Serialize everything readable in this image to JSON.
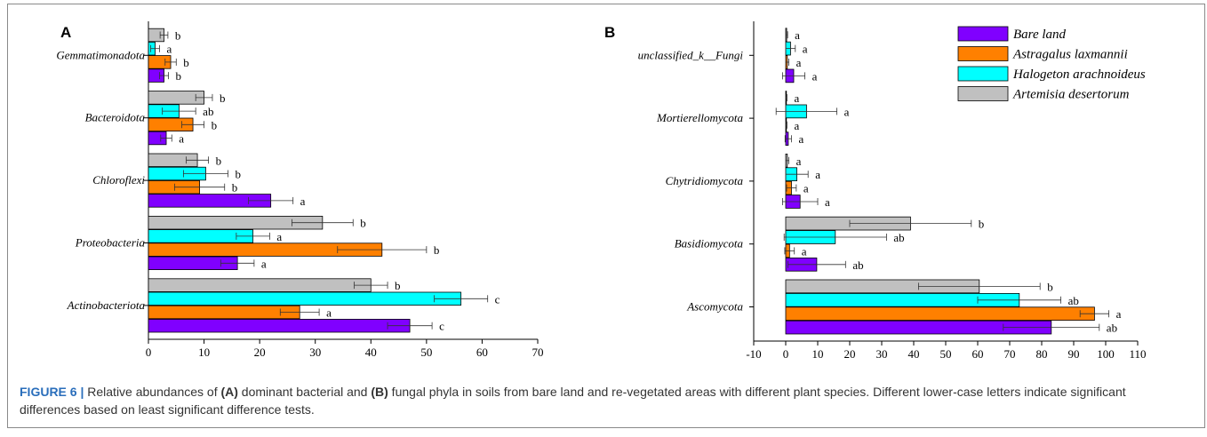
{
  "colors": {
    "bare": "#8000FF",
    "astragalus": "#FF8000",
    "halogeton": "#00FFFF",
    "artemisia": "#C0C0C0"
  },
  "chart_data": [
    {
      "type": "bar",
      "orientation": "horizontal",
      "panel_label": "A",
      "categories": [
        "Actinobacteriota",
        "Proteobacteria",
        "Chloroflexi",
        "Bacteroidota",
        "Gemmatimonadota"
      ],
      "xlim": [
        0,
        70
      ],
      "xticks": [
        "0",
        "10",
        "20",
        "30",
        "40",
        "50",
        "60",
        "70"
      ],
      "series": [
        {
          "name": "Bare land",
          "color_key": "bare",
          "values": [
            47,
            16,
            22,
            3.2,
            2.8
          ],
          "errors": [
            4,
            3,
            4,
            1,
            0.8
          ],
          "letters": [
            "c",
            "a",
            "a",
            "a",
            "b"
          ]
        },
        {
          "name": "Astragalus laxmannii",
          "color_key": "astragalus",
          "values": [
            27.2,
            42,
            9.2,
            8,
            4
          ],
          "errors": [
            3.5,
            8,
            4.5,
            2,
            1
          ],
          "letters": [
            "a",
            "b",
            "b",
            "b",
            "b"
          ]
        },
        {
          "name": "Halogeton arachnoideus",
          "color_key": "halogeton",
          "values": [
            56.2,
            18.8,
            10.3,
            5.5,
            1.2
          ],
          "errors": [
            4.8,
            3,
            4,
            3,
            0.8
          ],
          "letters": [
            "c",
            "a",
            "b",
            "ab",
            "a"
          ]
        },
        {
          "name": "Artemisia desertorum",
          "color_key": "artemisia",
          "values": [
            40,
            31.3,
            8.8,
            10,
            2.8
          ],
          "errors": [
            3,
            5.5,
            2,
            1.5,
            0.7
          ],
          "letters": [
            "b",
            "b",
            "b",
            "b",
            "b"
          ]
        }
      ]
    },
    {
      "type": "bar",
      "orientation": "horizontal",
      "panel_label": "B",
      "categories": [
        "Ascomycota",
        "Basidiomycota",
        "Chytridiomycota",
        "Mortierellomycota",
        "unclassified_k__Fungi"
      ],
      "xlim": [
        -10,
        110
      ],
      "xticks": [
        "-10",
        "0",
        "10",
        "20",
        "30",
        "40",
        "50",
        "60",
        "70",
        "80",
        "90",
        "100",
        "110"
      ],
      "series": [
        {
          "name": "Bare land",
          "color_key": "bare",
          "values": [
            83,
            9.7,
            4.5,
            0.8,
            2.5
          ],
          "errors": [
            15,
            9,
            5.5,
            1,
            3.5
          ],
          "letters": [
            "ab",
            "ab",
            "a",
            "a",
            "a"
          ]
        },
        {
          "name": "Astragalus laxmannii",
          "color_key": "astragalus",
          "values": [
            96.5,
            1.2,
            1.8,
            0.2,
            0.5
          ],
          "errors": [
            4.5,
            1.5,
            1.5,
            0.2,
            0.5
          ],
          "letters": [
            "a",
            "a",
            "a",
            "a",
            "a"
          ]
        },
        {
          "name": "Halogeton arachnoideus",
          "color_key": "halogeton",
          "values": [
            73,
            15.5,
            3.5,
            6.5,
            1.5
          ],
          "errors": [
            13,
            16,
            3.5,
            9.5,
            1.5
          ],
          "letters": [
            "ab",
            "ab",
            "a",
            "a",
            "a"
          ]
        },
        {
          "name": "Artemisia desertorum",
          "color_key": "artemisia",
          "values": [
            60.5,
            39,
            0.5,
            0.2,
            0.3
          ],
          "errors": [
            19,
            19,
            0.5,
            0.2,
            0.3
          ],
          "letters": [
            "b",
            "b",
            "a",
            "a",
            "a"
          ]
        }
      ],
      "legend": {
        "placement": "top-right",
        "entries": [
          "Bare land",
          "Astragalus laxmannii",
          "Halogeton arachnoideus",
          "Artemisia desertorum"
        ]
      }
    }
  ],
  "caption": {
    "label": "FIGURE 6 |",
    "p1": " Relative abundances of ",
    "b1": "(A)",
    "p2": " dominant bacterial and ",
    "b2": "(B)",
    "p3": " fungal phyla in soils from bare land and re-vegetated areas with different plant species. Different lower-case letters indicate significant differences based on least significant difference tests."
  }
}
